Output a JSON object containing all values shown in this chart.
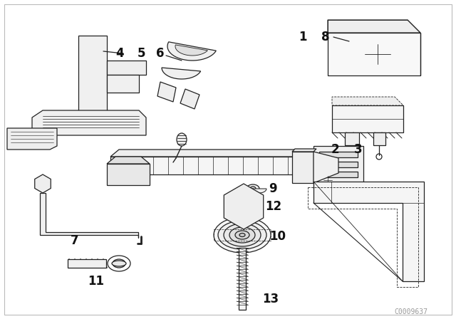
{
  "bg_color": "#ffffff",
  "line_color": "#222222",
  "label_color": "#111111",
  "watermark": "C0009637",
  "watermark_color": "#999999",
  "border_color": "#bbbbbb",
  "label_fontsize": 10,
  "lw": 0.9
}
